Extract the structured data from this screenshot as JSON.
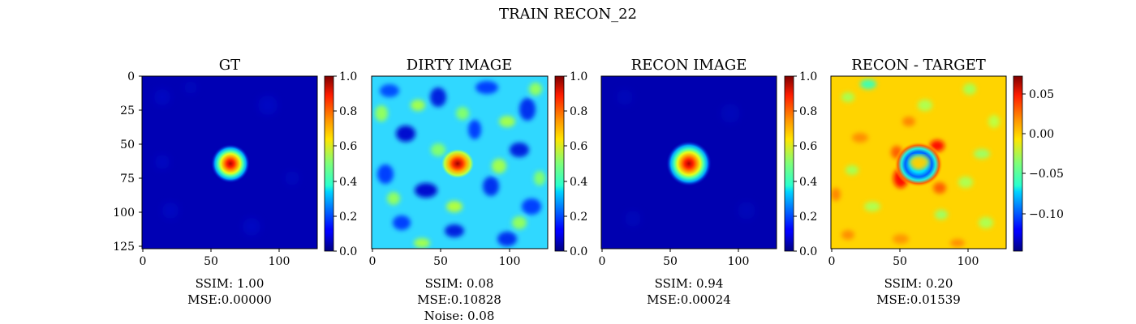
{
  "figure": {
    "suptitle": "TRAIN RECON_22"
  },
  "colors": {
    "cmap": "jet",
    "frame": "#000000",
    "background": "#ffffff"
  },
  "chart_data": [
    {
      "type": "heatmap",
      "title": "GT",
      "x_ticks": [
        "0",
        "50",
        "100"
      ],
      "y_ticks": [
        "0",
        "25",
        "50",
        "75",
        "100",
        "125"
      ],
      "xlim": [
        0,
        128
      ],
      "ylim": [
        128,
        0
      ],
      "colorbar": {
        "range": [
          0,
          1
        ],
        "ticks": [
          "0.0",
          "0.2",
          "0.4",
          "0.6",
          "0.8",
          "1.0"
        ]
      },
      "caption": [
        "SSIM: 1.00",
        "MSE:0.00000"
      ]
    },
    {
      "type": "heatmap",
      "title": "DIRTY IMAGE",
      "x_ticks": [
        "0",
        "50",
        "100"
      ],
      "xlim": [
        0,
        128
      ],
      "colorbar": {
        "range": [
          0,
          1
        ],
        "ticks": [
          "0.0",
          "0.2",
          "0.4",
          "0.6",
          "0.8",
          "1.0"
        ]
      },
      "caption": [
        "SSIM: 0.08",
        "MSE:0.10828",
        "Noise: 0.08"
      ]
    },
    {
      "type": "heatmap",
      "title": "RECON IMAGE",
      "x_ticks": [
        "0",
        "50",
        "100"
      ],
      "xlim": [
        0,
        128
      ],
      "colorbar": {
        "range": [
          0,
          1
        ],
        "ticks": [
          "0.0",
          "0.2",
          "0.4",
          "0.6",
          "0.8",
          "1.0"
        ]
      },
      "caption": [
        "SSIM: 0.94",
        "MSE:0.00024"
      ]
    },
    {
      "type": "heatmap",
      "title": "RECON - TARGET",
      "x_ticks": [
        "0",
        "50",
        "100"
      ],
      "xlim": [
        0,
        128
      ],
      "colorbar": {
        "range": [
          -0.15,
          0.07
        ],
        "ticks": [
          "0.05",
          "0.00",
          "−0.05",
          "−0.10"
        ],
        "tick_values": [
          0.05,
          0.0,
          -0.05,
          -0.1
        ]
      },
      "caption": [
        "SSIM: 0.20",
        "MSE:0.01539"
      ]
    }
  ]
}
